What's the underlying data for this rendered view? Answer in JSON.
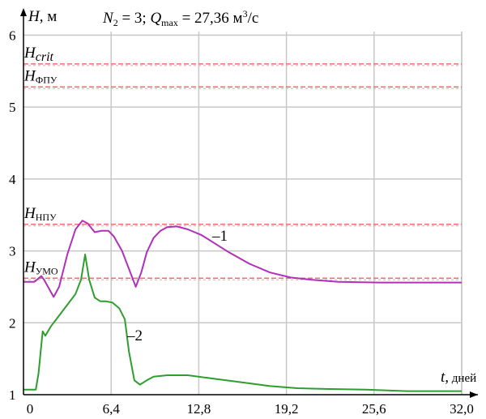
{
  "chart_data": {
    "type": "line",
    "title": {
      "n_sym": "N",
      "n_sub": "2",
      "n_val": " = 3; ",
      "q_sym": "Q",
      "q_sub": "max",
      "q_val": " = 27,36 м",
      "q_sup": "3",
      "q_unit": "/с"
    },
    "ylabel": {
      "sym": "H",
      "unit": ", м"
    },
    "xlabel": {
      "sym": "t,",
      "unit": " дней"
    },
    "xlim": [
      0,
      32
    ],
    "ylim": [
      1,
      6.05
    ],
    "x_tick_labels": [
      "0",
      "6,4",
      "12,8",
      "19,2",
      "25,6",
      "32,0"
    ],
    "y_tick_labels": [
      "1",
      "2",
      "3",
      "4",
      "5",
      "6"
    ],
    "reference_lines": [
      {
        "label": "crit",
        "label_style": "italic",
        "value": 5.6
      },
      {
        "label": "ФПУ",
        "label_style": "sub",
        "value": 5.28
      },
      {
        "label": "НПУ",
        "label_style": "sub",
        "value": 3.37
      },
      {
        "label": "УМО",
        "label_style": "sub",
        "value": 2.62
      }
    ],
    "series": [
      {
        "name": "1",
        "color": "#b030b8",
        "x": [
          0,
          0.8,
          1.3,
          1.5,
          2.2,
          2.6,
          3.2,
          3.8,
          4.3,
          4.7,
          5.2,
          5.7,
          6.2,
          6.6,
          7.2,
          7.7,
          8.2,
          8.6,
          9.0,
          9.5,
          10.0,
          10.5,
          11.2,
          12.0,
          13.0,
          14.0,
          15.0,
          16.5,
          18.0,
          19.5,
          21.0,
          23.0,
          26.0,
          29.0,
          32.0
        ],
        "y": [
          2.57,
          2.57,
          2.65,
          2.6,
          2.36,
          2.5,
          2.95,
          3.3,
          3.42,
          3.38,
          3.26,
          3.28,
          3.28,
          3.2,
          3.0,
          2.75,
          2.5,
          2.7,
          2.98,
          3.18,
          3.28,
          3.33,
          3.34,
          3.3,
          3.22,
          3.1,
          2.98,
          2.82,
          2.7,
          2.63,
          2.6,
          2.57,
          2.56,
          2.56,
          2.56
        ]
      },
      {
        "name": "2",
        "color": "#2e9e2e",
        "x": [
          0,
          0.9,
          1.1,
          1.4,
          1.6,
          2.0,
          2.6,
          3.2,
          3.8,
          4.2,
          4.5,
          4.8,
          5.2,
          5.6,
          6.0,
          6.5,
          7.0,
          7.4,
          7.7,
          8.1,
          8.5,
          9.0,
          9.5,
          10.5,
          12.0,
          14.0,
          16.0,
          18.0,
          20.0,
          22.0,
          25.0,
          28.0,
          32.0
        ],
        "y": [
          1.07,
          1.07,
          1.3,
          1.88,
          1.82,
          1.95,
          2.1,
          2.25,
          2.4,
          2.6,
          2.95,
          2.6,
          2.35,
          2.3,
          2.3,
          2.28,
          2.2,
          2.05,
          1.6,
          1.2,
          1.14,
          1.2,
          1.25,
          1.27,
          1.27,
          1.22,
          1.17,
          1.12,
          1.09,
          1.08,
          1.07,
          1.05,
          1.05
        ]
      }
    ],
    "grid": true,
    "series_labels": [
      "–1",
      "–2"
    ]
  },
  "colors": {
    "reference": "#ee6e72",
    "grid": "#c8c8c8",
    "axis": "#000000"
  }
}
